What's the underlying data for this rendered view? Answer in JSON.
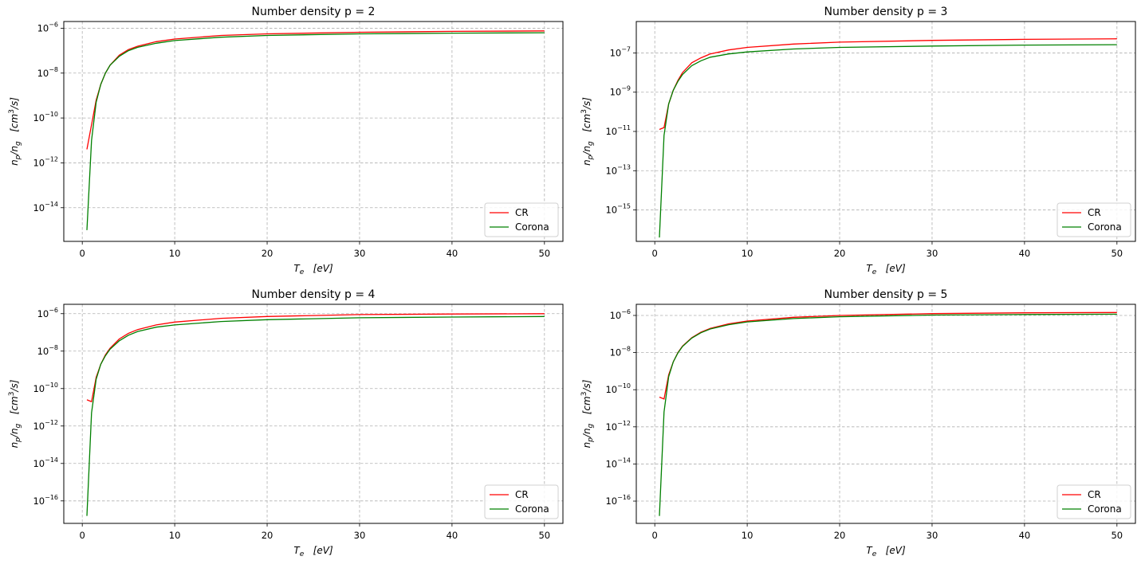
{
  "chart_data": [
    {
      "type": "line",
      "title": "Number density   p = 2",
      "xlabel": "T_e   [eV]",
      "ylabel": "n_p/n_g   [cm^3/s]",
      "yscale": "log",
      "xlim": [
        -2,
        52
      ],
      "ylim_exp": [
        -15.5,
        -5.7
      ],
      "xticks": [
        0,
        10,
        20,
        30,
        40,
        50
      ],
      "yticks_exp": [
        -14,
        -12,
        -10,
        -8,
        -6
      ],
      "grid": true,
      "legend_position": "lower-right",
      "series": [
        {
          "name": "CR",
          "color": "#ff0000",
          "x": [
            0.5,
            1,
            1.5,
            2,
            2.5,
            3,
            4,
            5,
            6,
            8,
            10,
            15,
            20,
            30,
            40,
            50
          ],
          "y_log10": [
            -11.4,
            -10.3,
            -9.2,
            -8.5,
            -8.0,
            -7.65,
            -7.2,
            -6.95,
            -6.8,
            -6.6,
            -6.48,
            -6.32,
            -6.25,
            -6.18,
            -6.14,
            -6.12
          ]
        },
        {
          "name": "Corona",
          "color": "#008000",
          "x": [
            0.5,
            1,
            1.5,
            2,
            2.5,
            3,
            4,
            5,
            6,
            8,
            10,
            15,
            20,
            30,
            40,
            50
          ],
          "y_log10": [
            -15.0,
            -11.0,
            -9.3,
            -8.5,
            -8.0,
            -7.65,
            -7.25,
            -7.0,
            -6.85,
            -6.67,
            -6.55,
            -6.4,
            -6.32,
            -6.25,
            -6.22,
            -6.2
          ]
        }
      ]
    },
    {
      "type": "line",
      "title": "Number density   p = 3",
      "xlabel": "T_e   [eV]",
      "ylabel": "n_p/n_g   [cm^3/s]",
      "yscale": "log",
      "xlim": [
        -2,
        52
      ],
      "ylim_exp": [
        -16.6,
        -5.4
      ],
      "xticks": [
        0,
        10,
        20,
        30,
        40,
        50
      ],
      "yticks_exp": [
        -15,
        -13,
        -11,
        -9,
        -7
      ],
      "grid": true,
      "legend_position": "lower-right",
      "series": [
        {
          "name": "CR",
          "color": "#ff0000",
          "x": [
            0.5,
            1,
            1.5,
            2,
            2.5,
            3,
            4,
            5,
            6,
            8,
            10,
            15,
            20,
            30,
            40,
            50
          ],
          "y_log10": [
            -10.9,
            -10.8,
            -9.6,
            -8.9,
            -8.4,
            -8.0,
            -7.5,
            -7.25,
            -7.05,
            -6.85,
            -6.72,
            -6.55,
            -6.45,
            -6.36,
            -6.31,
            -6.28
          ]
        },
        {
          "name": "Corona",
          "color": "#008000",
          "x": [
            0.5,
            1,
            1.5,
            2,
            2.5,
            3,
            4,
            5,
            6,
            8,
            10,
            15,
            20,
            30,
            40,
            50
          ],
          "y_log10": [
            -16.4,
            -11.2,
            -9.6,
            -8.9,
            -8.45,
            -8.1,
            -7.65,
            -7.4,
            -7.22,
            -7.05,
            -6.95,
            -6.8,
            -6.72,
            -6.65,
            -6.6,
            -6.58
          ]
        }
      ]
    },
    {
      "type": "line",
      "title": "Number density   p = 4",
      "xlabel": "T_e   [eV]",
      "ylabel": "n_p/n_g   [cm^3/s]",
      "yscale": "log",
      "xlim": [
        -2,
        52
      ],
      "ylim_exp": [
        -17.2,
        -5.5
      ],
      "xticks": [
        0,
        10,
        20,
        30,
        40,
        50
      ],
      "yticks_exp": [
        -16,
        -14,
        -12,
        -10,
        -8,
        -6
      ],
      "grid": true,
      "legend_position": "lower-right",
      "series": [
        {
          "name": "CR",
          "color": "#ff0000",
          "x": [
            0.5,
            1,
            1.5,
            2,
            2.5,
            3,
            4,
            5,
            6,
            8,
            10,
            15,
            20,
            30,
            40,
            50
          ],
          "y_log10": [
            -10.6,
            -10.7,
            -9.4,
            -8.7,
            -8.2,
            -7.85,
            -7.35,
            -7.05,
            -6.85,
            -6.6,
            -6.45,
            -6.25,
            -6.15,
            -6.05,
            -6.02,
            -6.0
          ]
        },
        {
          "name": "Corona",
          "color": "#008000",
          "x": [
            0.5,
            1,
            1.5,
            2,
            2.5,
            3,
            4,
            5,
            6,
            8,
            10,
            15,
            20,
            30,
            40,
            50
          ],
          "y_log10": [
            -16.8,
            -11.3,
            -9.5,
            -8.7,
            -8.25,
            -7.9,
            -7.45,
            -7.15,
            -6.95,
            -6.72,
            -6.6,
            -6.42,
            -6.32,
            -6.22,
            -6.18,
            -6.15
          ]
        }
      ]
    },
    {
      "type": "line",
      "title": "Number density   p = 5",
      "xlabel": "T_e   [eV]",
      "ylabel": "n_p/n_g   [cm^3/s]",
      "yscale": "log",
      "xlim": [
        -2,
        52
      ],
      "ylim_exp": [
        -17.2,
        -5.4
      ],
      "xticks": [
        0,
        10,
        20,
        30,
        40,
        50
      ],
      "yticks_exp": [
        -16,
        -14,
        -12,
        -10,
        -8,
        -6
      ],
      "grid": true,
      "legend_position": "lower-right",
      "series": [
        {
          "name": "CR",
          "color": "#ff0000",
          "x": [
            0.5,
            1,
            1.5,
            2,
            2.5,
            3,
            4,
            5,
            6,
            8,
            10,
            15,
            20,
            30,
            40,
            50
          ],
          "y_log10": [
            -10.4,
            -10.5,
            -9.2,
            -8.5,
            -8.0,
            -7.65,
            -7.2,
            -6.9,
            -6.7,
            -6.45,
            -6.3,
            -6.1,
            -6.0,
            -5.9,
            -5.86,
            -5.84
          ]
        },
        {
          "name": "Corona",
          "color": "#008000",
          "x": [
            0.5,
            1,
            1.5,
            2,
            2.5,
            3,
            4,
            5,
            6,
            8,
            10,
            15,
            20,
            30,
            40,
            50
          ],
          "y_log10": [
            -16.8,
            -11.2,
            -9.3,
            -8.5,
            -8.02,
            -7.67,
            -7.22,
            -6.93,
            -6.73,
            -6.5,
            -6.35,
            -6.17,
            -6.07,
            -5.98,
            -5.95,
            -5.93
          ]
        }
      ]
    }
  ]
}
